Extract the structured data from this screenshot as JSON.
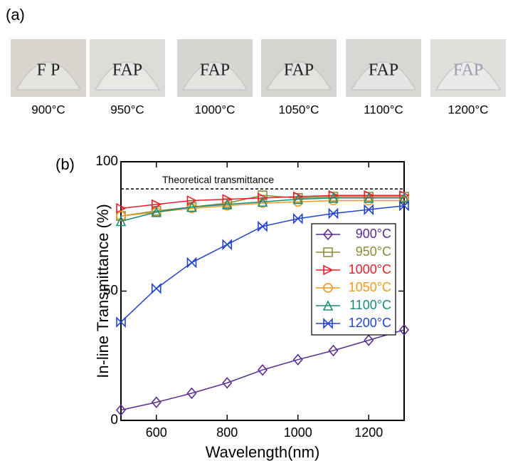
{
  "panel_a": {
    "label": "(a)",
    "samples": [
      {
        "photo_text": "F  P",
        "caption": "900°C"
      },
      {
        "photo_text": "FAP",
        "caption": "950°C"
      },
      {
        "photo_text": "FAP",
        "caption": "1000°C"
      },
      {
        "photo_text": "FAP",
        "caption": "1050°C"
      },
      {
        "photo_text": "FAP",
        "caption": "1100°C"
      },
      {
        "photo_text": "FAP",
        "caption": "1200°C"
      }
    ]
  },
  "chart_data": {
    "type": "line",
    "panel_label": "(b)",
    "x_label": "Wavelength(nm)",
    "y_label": "In-line Transmittance (%)",
    "x": [
      500,
      600,
      700,
      800,
      900,
      1000,
      1100,
      1200,
      1300
    ],
    "xlim": [
      500,
      1300
    ],
    "xticks": [
      600,
      800,
      1000,
      1200
    ],
    "ylim": [
      0,
      100
    ],
    "yticks": [
      0,
      50,
      100
    ],
    "reference_line": {
      "value": 89.5,
      "label": "Theoretical transmittance"
    },
    "legend": "right",
    "series": [
      {
        "name": "900°C",
        "color": "#5b2c8f",
        "marker": "diamond",
        "values": [
          4,
          7,
          10.5,
          14.5,
          19.5,
          23.5,
          27,
          31,
          35
        ]
      },
      {
        "name": "950°C",
        "color": "#8b8b3a",
        "marker": "square",
        "values": [
          79,
          81,
          82.5,
          84,
          87,
          86,
          86.5,
          86.5,
          86.5
        ]
      },
      {
        "name": "1000°C",
        "color": "#e8202a",
        "marker": "triangle-right",
        "values": [
          82,
          83.5,
          85,
          85.5,
          86,
          86.5,
          87,
          87,
          87
        ]
      },
      {
        "name": "1050°C",
        "color": "#f39a1e",
        "marker": "circle",
        "values": [
          79,
          80.5,
          82,
          83,
          84,
          84.5,
          85,
          85,
          85
        ]
      },
      {
        "name": "1100°C",
        "color": "#1a8a7a",
        "marker": "triangle-up",
        "values": [
          77,
          80.5,
          82.5,
          83.5,
          84.5,
          85.5,
          86,
          86,
          86
        ]
      },
      {
        "name": "1200°C",
        "color": "#2244cc",
        "marker": "bowtie",
        "values": [
          38,
          51,
          61,
          68,
          75,
          78,
          80,
          81.5,
          83
        ]
      }
    ]
  }
}
